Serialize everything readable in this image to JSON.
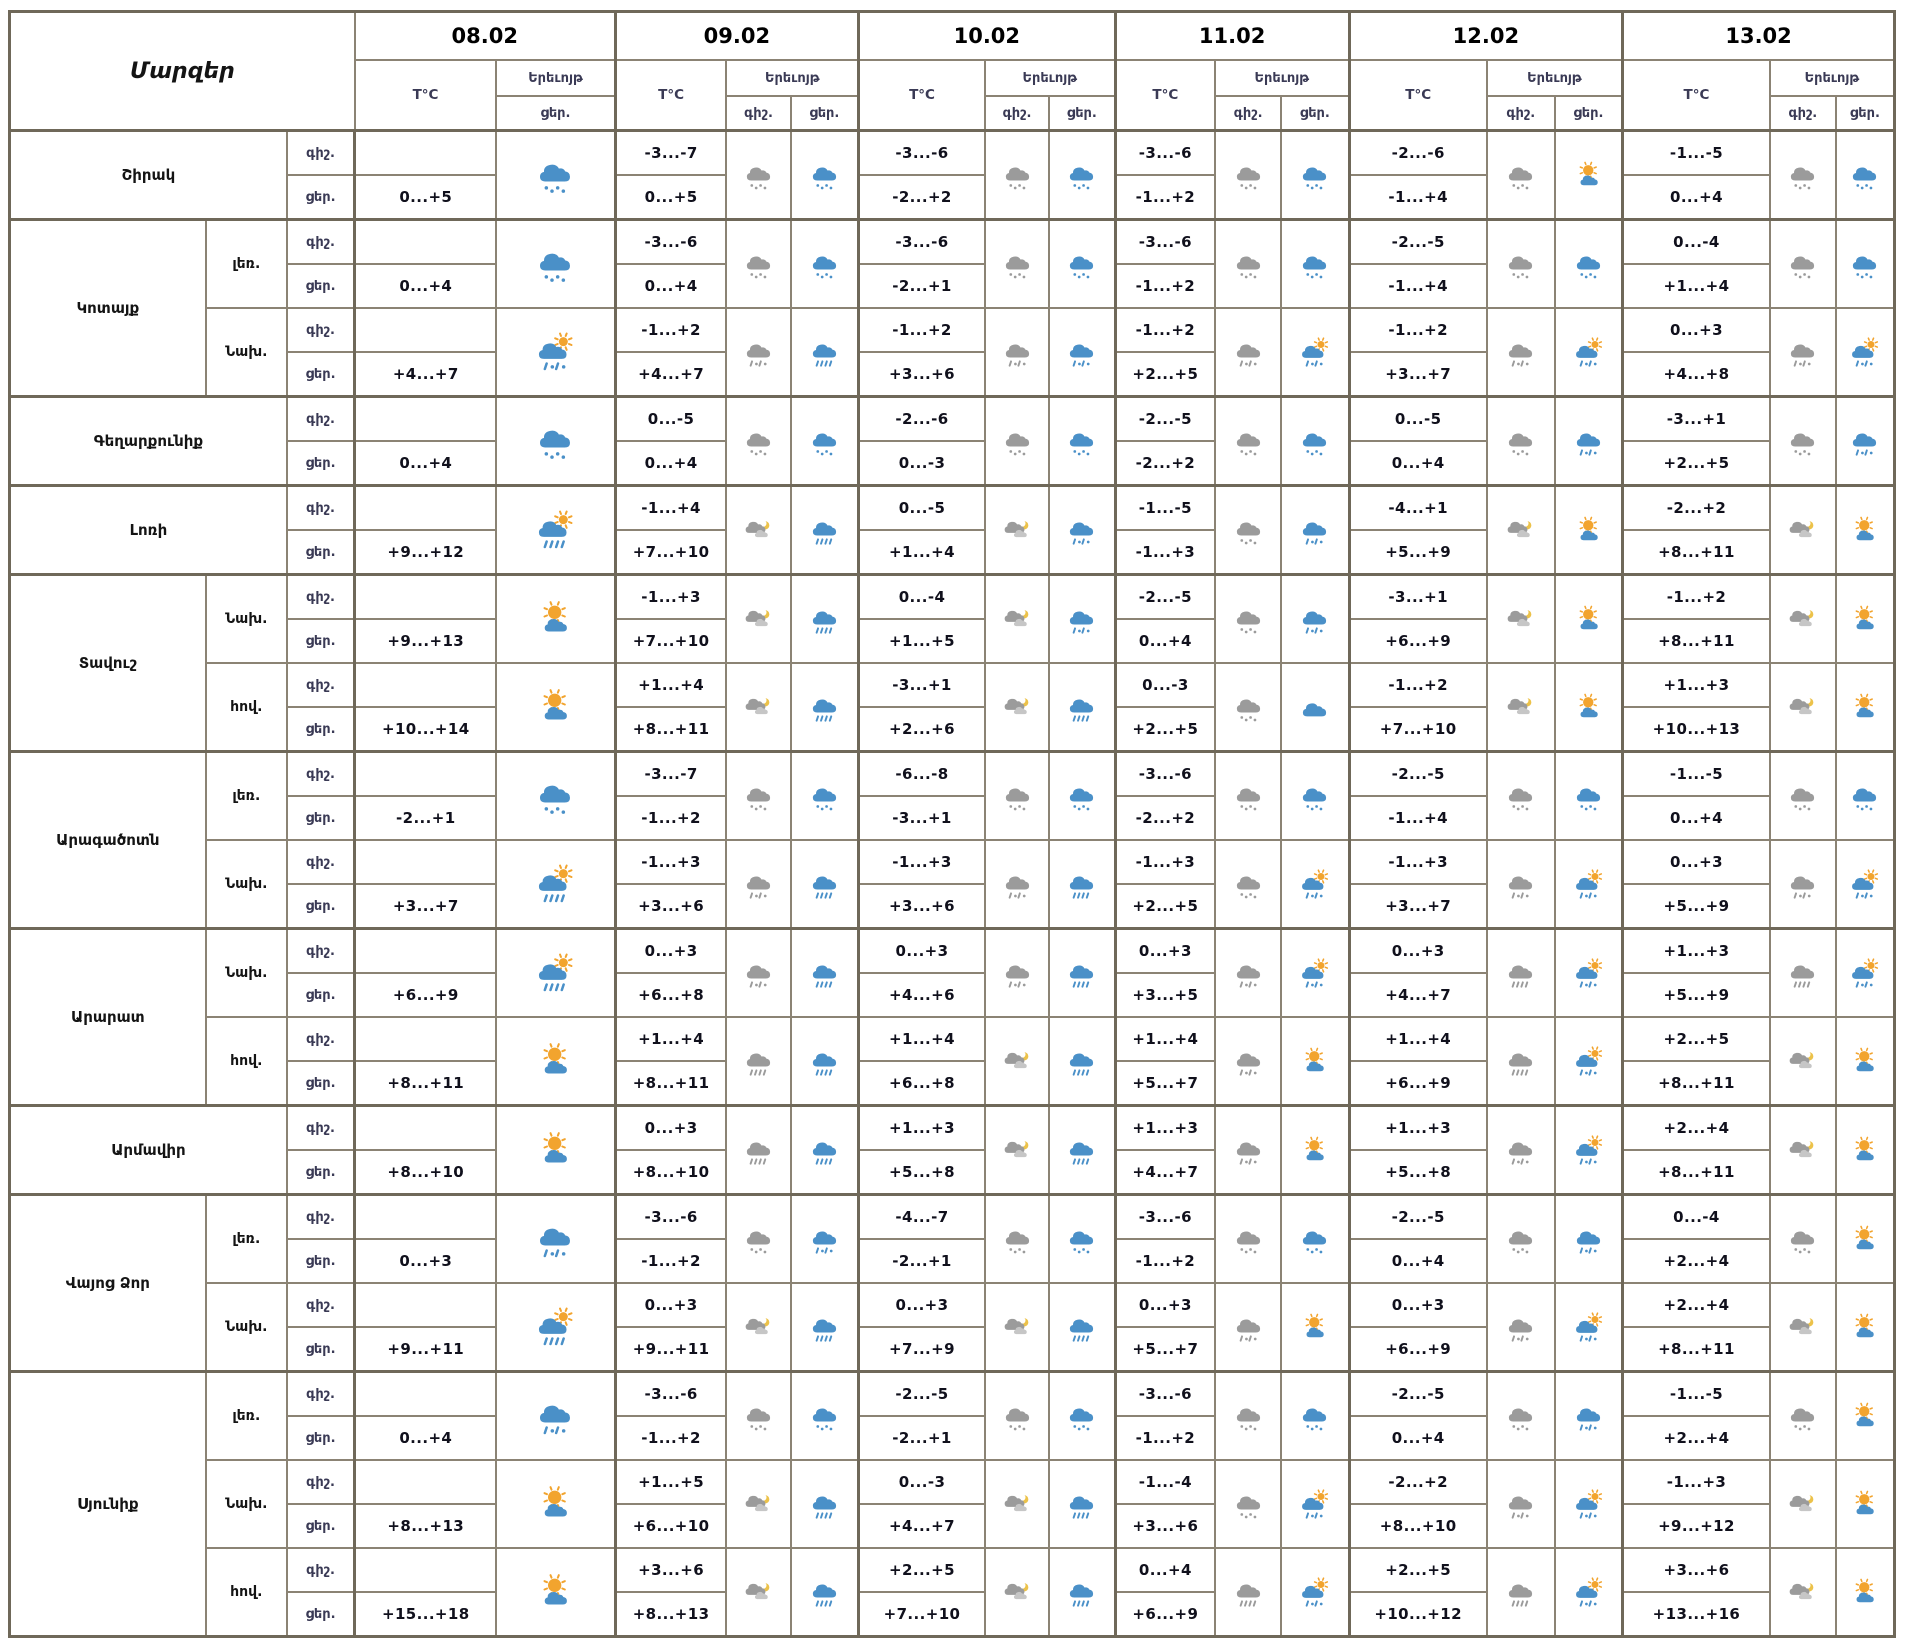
{
  "header": {
    "regions_label": "Մարզեր",
    "dates": [
      "08.02",
      "09.02",
      "10.02",
      "11.02",
      "12.02",
      "13.02"
    ],
    "temp_label": "T°C",
    "phenomenon_label": "Երեւոյթ",
    "night_label": "գիշ.",
    "day_label": "ցեր."
  },
  "colors": {
    "cloud_blue": "#4a90c8",
    "cloud_gray": "#9b9b9b",
    "cloud_light": "#c6c6c6",
    "sun": "#f2a42e",
    "moon": "#ecc24a",
    "border": "#8b8374",
    "border_strong": "#6f6859",
    "label_text": "#3a3a55",
    "temp_text": "#10101c"
  },
  "icon_legend": {
    "snow_blue": "blue cloud with snow",
    "snow_gray": "gray cloud with snow",
    "sleet_blue": "blue cloud with rain and snow",
    "sleet_gray": "gray cloud with rain and snow",
    "rain_blue": "blue cloud with rain",
    "rain_gray": "gray cloud with rain",
    "cloud_blue": "blue cloud",
    "moon_cloud": "moon behind clouds",
    "sun_cloud": "sun with small cloud",
    "sun_rain": "sun behind cloud with rain",
    "sun_sleet": "sun behind cloud with rain and snow"
  },
  "regions": [
    {
      "name": "Շիրակ",
      "rows": [
        {
          "sub": null,
          "night": [
            "",
            "-3...-7",
            "-3...-6",
            "-3...-6",
            "-2...-6",
            "-1...-5"
          ],
          "day": [
            "0...+5",
            "0...+5",
            "-2...+2",
            "-1...+2",
            "-1...+4",
            "0...+4"
          ],
          "night_icons": [
            null,
            "snow_gray",
            "snow_gray",
            "snow_gray",
            "snow_gray",
            "snow_gray"
          ],
          "day_icons": [
            "snow_blue",
            "snow_blue",
            "snow_blue",
            "snow_blue",
            "sun_cloud",
            "snow_blue"
          ]
        }
      ]
    },
    {
      "name": "Կոտայք",
      "rows": [
        {
          "sub": "լեռ.",
          "night": [
            "",
            "-3...-6",
            "-3...-6",
            "-3...-6",
            "-2...-5",
            "0...-4"
          ],
          "day": [
            "0...+4",
            "0...+4",
            "-2...+1",
            "-1...+2",
            "-1...+4",
            "+1...+4"
          ],
          "night_icons": [
            null,
            "snow_gray",
            "snow_gray",
            "snow_gray",
            "snow_gray",
            "snow_gray"
          ],
          "day_icons": [
            "snow_blue",
            "snow_blue",
            "snow_blue",
            "snow_blue",
            "snow_blue",
            "snow_blue"
          ]
        },
        {
          "sub": "Նախ.",
          "night": [
            "",
            "-1...+2",
            "-1...+2",
            "-1...+2",
            "-1...+2",
            "0...+3"
          ],
          "day": [
            "+4...+7",
            "+4...+7",
            "+3...+6",
            "+2...+5",
            "+3...+7",
            "+4...+8"
          ],
          "night_icons": [
            null,
            "sleet_gray",
            "sleet_gray",
            "sleet_gray",
            "sleet_gray",
            "sleet_gray"
          ],
          "day_icons": [
            "sun_sleet",
            "rain_blue",
            "sleet_blue",
            "sun_sleet",
            "sun_sleet",
            "sun_sleet"
          ]
        }
      ]
    },
    {
      "name": "Գեղարքունիք",
      "rows": [
        {
          "sub": null,
          "night": [
            "",
            "0...-5",
            "-2...-6",
            "-2...-5",
            "0...-5",
            "-3...+1"
          ],
          "day": [
            "0...+4",
            "0...+4",
            "0...-3",
            "-2...+2",
            "0...+4",
            "+2...+5"
          ],
          "night_icons": [
            null,
            "snow_gray",
            "snow_gray",
            "snow_gray",
            "snow_gray",
            "snow_gray"
          ],
          "day_icons": [
            "snow_blue",
            "snow_blue",
            "snow_blue",
            "snow_blue",
            "sleet_blue",
            "sleet_blue"
          ]
        }
      ]
    },
    {
      "name": "Լոռի",
      "rows": [
        {
          "sub": null,
          "night": [
            "",
            "-1...+4",
            "0...-5",
            "-1...-5",
            "-4...+1",
            "-2...+2"
          ],
          "day": [
            "+9...+12",
            "+7...+10",
            "+1...+4",
            "-1...+3",
            "+5...+9",
            "+8...+11"
          ],
          "night_icons": [
            null,
            "moon_cloud",
            "moon_cloud",
            "snow_gray",
            "moon_cloud",
            "moon_cloud"
          ],
          "day_icons": [
            "sun_rain",
            "rain_blue",
            "sleet_blue",
            "sleet_blue",
            "sun_cloud",
            "sun_cloud"
          ]
        }
      ]
    },
    {
      "name": "Տավուշ",
      "rows": [
        {
          "sub": "Նախ.",
          "night": [
            "",
            "-1...+3",
            "0...-4",
            "-2...-5",
            "-3...+1",
            "-1...+2"
          ],
          "day": [
            "+9...+13",
            "+7...+10",
            "+1...+5",
            "0...+4",
            "+6...+9",
            "+8...+11"
          ],
          "night_icons": [
            null,
            "moon_cloud",
            "moon_cloud",
            "snow_gray",
            "moon_cloud",
            "moon_cloud"
          ],
          "day_icons": [
            "sun_cloud",
            "rain_blue",
            "sleet_blue",
            "sleet_blue",
            "sun_cloud",
            "sun_cloud"
          ]
        },
        {
          "sub": "հով.",
          "night": [
            "",
            "+1...+4",
            "-3...+1",
            "0...-3",
            "-1...+2",
            "+1...+3"
          ],
          "day": [
            "+10...+14",
            "+8...+11",
            "+2...+6",
            "+2...+5",
            "+7...+10",
            "+10...+13"
          ],
          "night_icons": [
            null,
            "moon_cloud",
            "moon_cloud",
            "snow_gray",
            "moon_cloud",
            "moon_cloud"
          ],
          "day_icons": [
            "sun_cloud",
            "rain_blue",
            "rain_blue",
            "cloud_blue",
            "sun_cloud",
            "sun_cloud"
          ]
        }
      ]
    },
    {
      "name": "Արագածոտն",
      "rows": [
        {
          "sub": "լեռ.",
          "night": [
            "",
            "-3...-7",
            "-6...-8",
            "-3...-6",
            "-2...-5",
            "-1...-5"
          ],
          "day": [
            "-2...+1",
            "-1...+2",
            "-3...+1",
            "-2...+2",
            "-1...+4",
            "0...+4"
          ],
          "night_icons": [
            null,
            "snow_gray",
            "snow_gray",
            "snow_gray",
            "snow_gray",
            "snow_gray"
          ],
          "day_icons": [
            "snow_blue",
            "snow_blue",
            "snow_blue",
            "snow_blue",
            "snow_blue",
            "snow_blue"
          ]
        },
        {
          "sub": "Նախ.",
          "night": [
            "",
            "-1...+3",
            "-1...+3",
            "-1...+3",
            "-1...+3",
            "0...+3"
          ],
          "day": [
            "+3...+7",
            "+3...+6",
            "+3...+6",
            "+2...+5",
            "+3...+7",
            "+5...+9"
          ],
          "night_icons": [
            null,
            "sleet_gray",
            "sleet_gray",
            "snow_gray",
            "sleet_gray",
            "sleet_gray"
          ],
          "day_icons": [
            "sun_rain",
            "rain_blue",
            "rain_blue",
            "sun_sleet",
            "sun_sleet",
            "sun_sleet"
          ]
        }
      ]
    },
    {
      "name": "Արարատ",
      "rows": [
        {
          "sub": "Նախ.",
          "night": [
            "",
            "0...+3",
            "0...+3",
            "0...+3",
            "0...+3",
            "+1...+3"
          ],
          "day": [
            "+6...+9",
            "+6...+8",
            "+4...+6",
            "+3...+5",
            "+4...+7",
            "+5...+9"
          ],
          "night_icons": [
            null,
            "sleet_gray",
            "sleet_gray",
            "sleet_gray",
            "rain_gray",
            "rain_gray"
          ],
          "day_icons": [
            "sun_rain",
            "rain_blue",
            "rain_blue",
            "sun_sleet",
            "sun_sleet",
            "sun_sleet"
          ]
        },
        {
          "sub": "հով.",
          "night": [
            "",
            "+1...+4",
            "+1...+4",
            "+1...+4",
            "+1...+4",
            "+2...+5"
          ],
          "day": [
            "+8...+11",
            "+8...+11",
            "+6...+8",
            "+5...+7",
            "+6...+9",
            "+8...+11"
          ],
          "night_icons": [
            null,
            "rain_gray",
            "moon_cloud",
            "sleet_gray",
            "rain_gray",
            "moon_cloud"
          ],
          "day_icons": [
            "sun_cloud",
            "rain_blue",
            "rain_blue",
            "sun_cloud",
            "sun_sleet",
            "sun_cloud"
          ]
        }
      ]
    },
    {
      "name": "Արմավիր",
      "rows": [
        {
          "sub": null,
          "night": [
            "",
            "0...+3",
            "+1...+3",
            "+1...+3",
            "+1...+3",
            "+2...+4"
          ],
          "day": [
            "+8...+10",
            "+8...+10",
            "+5...+8",
            "+4...+7",
            "+5...+8",
            "+8...+11"
          ],
          "night_icons": [
            null,
            "rain_gray",
            "moon_cloud",
            "sleet_gray",
            "sleet_gray",
            "moon_cloud"
          ],
          "day_icons": [
            "sun_cloud",
            "rain_blue",
            "rain_blue",
            "sun_cloud",
            "sun_sleet",
            "sun_cloud"
          ]
        }
      ]
    },
    {
      "name": "Վայոց Ձոր",
      "rows": [
        {
          "sub": "լեռ.",
          "night": [
            "",
            "-3...-6",
            "-4...-7",
            "-3...-6",
            "-2...-5",
            "0...-4"
          ],
          "day": [
            "0...+3",
            "-1...+2",
            "-2...+1",
            "-1...+2",
            "0...+4",
            "+2...+4"
          ],
          "night_icons": [
            null,
            "snow_gray",
            "snow_gray",
            "snow_gray",
            "snow_gray",
            "snow_gray"
          ],
          "day_icons": [
            "sleet_blue",
            "sleet_blue",
            "snow_blue",
            "snow_blue",
            "sleet_blue",
            "sun_cloud"
          ]
        },
        {
          "sub": "Նախ.",
          "night": [
            "",
            "0...+3",
            "0...+3",
            "0...+3",
            "0...+3",
            "+2...+4"
          ],
          "day": [
            "+9...+11",
            "+9...+11",
            "+7...+9",
            "+5...+7",
            "+6...+9",
            "+8...+11"
          ],
          "night_icons": [
            null,
            "moon_cloud",
            "moon_cloud",
            "sleet_gray",
            "sleet_gray",
            "moon_cloud"
          ],
          "day_icons": [
            "sun_rain",
            "rain_blue",
            "rain_blue",
            "sun_cloud",
            "sun_sleet",
            "sun_cloud"
          ]
        }
      ]
    },
    {
      "name": "Սյունիք",
      "rows": [
        {
          "sub": "լեռ.",
          "night": [
            "",
            "-3...-6",
            "-2...-5",
            "-3...-6",
            "-2...-5",
            "-1...-5"
          ],
          "day": [
            "0...+4",
            "-1...+2",
            "-2...+1",
            "-1...+2",
            "0...+4",
            "+2...+4"
          ],
          "night_icons": [
            null,
            "snow_gray",
            "snow_gray",
            "snow_gray",
            "snow_gray",
            "snow_gray"
          ],
          "day_icons": [
            "sleet_blue",
            "snow_blue",
            "snow_blue",
            "snow_blue",
            "sleet_blue",
            "sun_cloud"
          ]
        },
        {
          "sub": "Նախ.",
          "night": [
            "",
            "+1...+5",
            "0...-3",
            "-1...-4",
            "-2...+2",
            "-1...+3"
          ],
          "day": [
            "+8...+13",
            "+6...+10",
            "+4...+7",
            "+3...+6",
            "+8...+10",
            "+9...+12"
          ],
          "night_icons": [
            null,
            "moon_cloud",
            "moon_cloud",
            "snow_gray",
            "sleet_gray",
            "moon_cloud"
          ],
          "day_icons": [
            "sun_cloud",
            "rain_blue",
            "rain_blue",
            "sun_sleet",
            "sun_sleet",
            "sun_cloud"
          ]
        },
        {
          "sub": "հով.",
          "night": [
            "",
            "+3...+6",
            "+2...+5",
            "0...+4",
            "+2...+5",
            "+3...+6"
          ],
          "day": [
            "+15...+18",
            "+8...+13",
            "+7...+10",
            "+6...+9",
            "+10...+12",
            "+13...+16"
          ],
          "night_icons": [
            null,
            "moon_cloud",
            "moon_cloud",
            "rain_gray",
            "rain_gray",
            "moon_cloud"
          ],
          "day_icons": [
            "sun_cloud",
            "rain_blue",
            "rain_blue",
            "sun_sleet",
            "sun_sleet",
            "sun_cloud"
          ]
        }
      ]
    }
  ]
}
